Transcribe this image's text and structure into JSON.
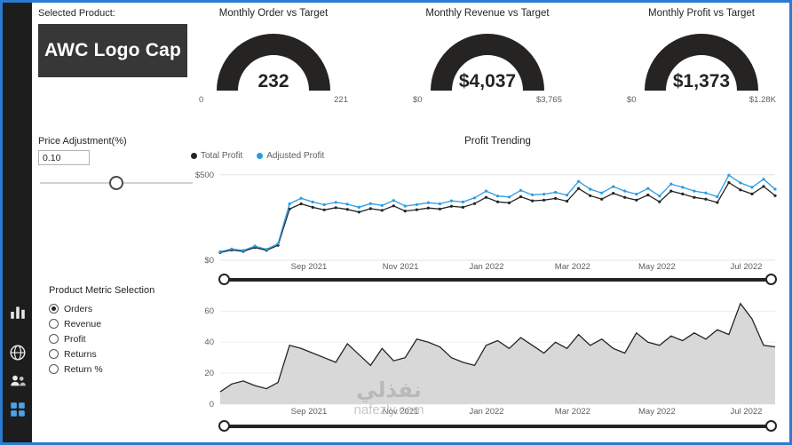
{
  "colors": {
    "border_blue": "#2b7bd1",
    "accent_blue": "#2b9be3",
    "dark": "#252423",
    "sidebar_bg": "#1d1d1d",
    "product_box_bg": "#373737",
    "area_fill": "#d8d8d8",
    "axis_gray": "#605e5c"
  },
  "sidebar": {
    "icons": [
      "bar-chart",
      "globe",
      "people",
      "app-grid"
    ]
  },
  "product": {
    "label": "Selected Product:",
    "name": "AWC Logo Cap"
  },
  "gauges": [
    {
      "title": "Monthly Order vs Target",
      "value": "232",
      "min": "0",
      "max": "221"
    },
    {
      "title": "Monthly Revenue vs Target",
      "value": "$4,037",
      "min": "$0",
      "max": "$3,765"
    },
    {
      "title": "Monthly Profit vs Target",
      "value": "$1,373",
      "min": "$0",
      "max": "$1.28K"
    }
  ],
  "price_adjustment": {
    "label": "Price Adjustment(%)",
    "value": "0.10"
  },
  "metric_selection": {
    "label": "Product Metric Selection",
    "options": [
      {
        "label": "Orders",
        "selected": true
      },
      {
        "label": "Revenue",
        "selected": false
      },
      {
        "label": "Profit",
        "selected": false
      },
      {
        "label": "Returns",
        "selected": false
      },
      {
        "label": "Return %",
        "selected": false
      }
    ]
  },
  "watermark": {
    "line1": "نفذلي",
    "line2": "nafezly.com"
  },
  "chart_data": [
    {
      "type": "line",
      "title": "Profit Trending",
      "series": [
        {
          "name": "Total Profit",
          "color": "#252423",
          "values": [
            45,
            60,
            52,
            75,
            58,
            88,
            300,
            330,
            310,
            295,
            308,
            298,
            282,
            302,
            292,
            318,
            288,
            296,
            306,
            300,
            316,
            310,
            332,
            368,
            342,
            336,
            372,
            348,
            352,
            362,
            346,
            420,
            378,
            358,
            392,
            368,
            352,
            382,
            342,
            405,
            388,
            368,
            358,
            338,
            455,
            412,
            388,
            432,
            378
          ]
        },
        {
          "name": "Adjusted Profit",
          "color": "#2b9be3",
          "values": [
            50,
            66,
            57,
            83,
            64,
            97,
            330,
            363,
            341,
            325,
            339,
            328,
            310,
            332,
            321,
            350,
            317,
            326,
            337,
            330,
            348,
            341,
            365,
            405,
            376,
            370,
            409,
            383,
            387,
            398,
            381,
            462,
            416,
            394,
            431,
            405,
            387,
            420,
            376,
            446,
            427,
            405,
            394,
            372,
            498,
            453,
            427,
            475,
            416
          ]
        }
      ],
      "x_ticks": [
        {
          "label": "Sep 2021",
          "pos": 0.16
        },
        {
          "label": "Nov 2021",
          "pos": 0.325
        },
        {
          "label": "Jan 2022",
          "pos": 0.48
        },
        {
          "label": "Mar 2022",
          "pos": 0.635
        },
        {
          "label": "May 2022",
          "pos": 0.787
        },
        {
          "label": "Jul 2022",
          "pos": 0.948
        }
      ],
      "y_ticks": [
        {
          "label": "$500",
          "value": 500
        },
        {
          "label": "$0",
          "value": 0
        }
      ],
      "ylim": [
        0,
        520
      ],
      "legend_position": "top-left",
      "grid": true
    },
    {
      "type": "area",
      "metric": "Orders",
      "values": [
        8,
        13,
        15,
        12,
        10,
        14,
        38,
        36,
        33,
        30,
        27,
        39,
        32,
        25,
        36,
        28,
        30,
        42,
        40,
        37,
        30,
        27,
        25,
        38,
        41,
        36,
        43,
        38,
        33,
        40,
        36,
        45,
        38,
        42,
        36,
        33,
        46,
        40,
        38,
        44,
        41,
        46,
        42,
        48,
        45,
        65,
        55,
        38,
        37
      ],
      "x_ticks": [
        {
          "label": "Sep 2021",
          "pos": 0.16
        },
        {
          "label": "Nov 2021",
          "pos": 0.325
        },
        {
          "label": "Jan 2022",
          "pos": 0.48
        },
        {
          "label": "Mar 2022",
          "pos": 0.635
        },
        {
          "label": "May 2022",
          "pos": 0.787
        },
        {
          "label": "Jul 2022",
          "pos": 0.948
        }
      ],
      "y_ticks": [
        {
          "label": "60",
          "value": 60
        },
        {
          "label": "40",
          "value": 40
        },
        {
          "label": "20",
          "value": 20
        },
        {
          "label": "0",
          "value": 0
        }
      ],
      "ylim": [
        0,
        70
      ],
      "fill": "#d8d8d8",
      "stroke": "#252423",
      "grid": true
    }
  ]
}
